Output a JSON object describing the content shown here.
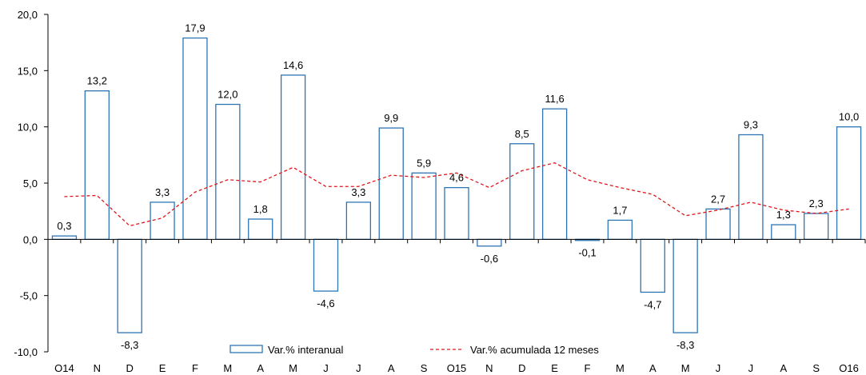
{
  "chart_data": {
    "type": "bar",
    "title": "",
    "xlabel": "",
    "ylabel": "",
    "ylim": [
      -10,
      20
    ],
    "yticks": [
      "20,0",
      "15,0",
      "10,0",
      "5,0",
      "0,0",
      "-5,0",
      "-10,0"
    ],
    "ytick_values": [
      20,
      15,
      10,
      5,
      0,
      -5,
      -10
    ],
    "categories": [
      "O14",
      "N",
      "D",
      "E",
      "F",
      "M",
      "A",
      "M",
      "J",
      "J",
      "A",
      "S",
      "O15",
      "N",
      "D",
      "E",
      "F",
      "M",
      "A",
      "M",
      "J",
      "J",
      "A",
      "S",
      "O16"
    ],
    "series": [
      {
        "name": "Var.% interanual",
        "type": "bar",
        "color": "#2e75b6",
        "values": [
          0.3,
          13.2,
          -8.3,
          3.3,
          17.9,
          12.0,
          1.8,
          14.6,
          -4.6,
          3.3,
          9.9,
          5.9,
          4.6,
          -0.6,
          8.5,
          11.6,
          -0.1,
          1.7,
          -4.7,
          -8.3,
          2.7,
          9.3,
          1.3,
          2.3,
          10.0
        ],
        "labels": [
          "0,3",
          "13,2",
          "-8,3",
          "3,3",
          "17,9",
          "12,0",
          "1,8",
          "14,6",
          "-4,6",
          "3,3",
          "9,9",
          "5,9",
          "4,6",
          "-0,6",
          "8,5",
          "11,6",
          "-0,1",
          "1,7",
          "-4,7",
          "-8,3",
          "2,7",
          "9,3",
          "1,3",
          "2,3",
          "10,0"
        ]
      },
      {
        "name": "Var.% acumulada 12 meses",
        "type": "line",
        "style": "dashed",
        "color": "#e0161b",
        "values": [
          3.8,
          3.9,
          1.2,
          1.9,
          4.2,
          5.3,
          5.1,
          6.4,
          4.7,
          4.7,
          5.7,
          5.5,
          5.9,
          4.6,
          6.1,
          6.8,
          5.3,
          4.6,
          4.0,
          2.1,
          2.6,
          3.3,
          2.6,
          2.3,
          2.7
        ]
      }
    ],
    "legend_position": "bottom",
    "grid": false
  }
}
